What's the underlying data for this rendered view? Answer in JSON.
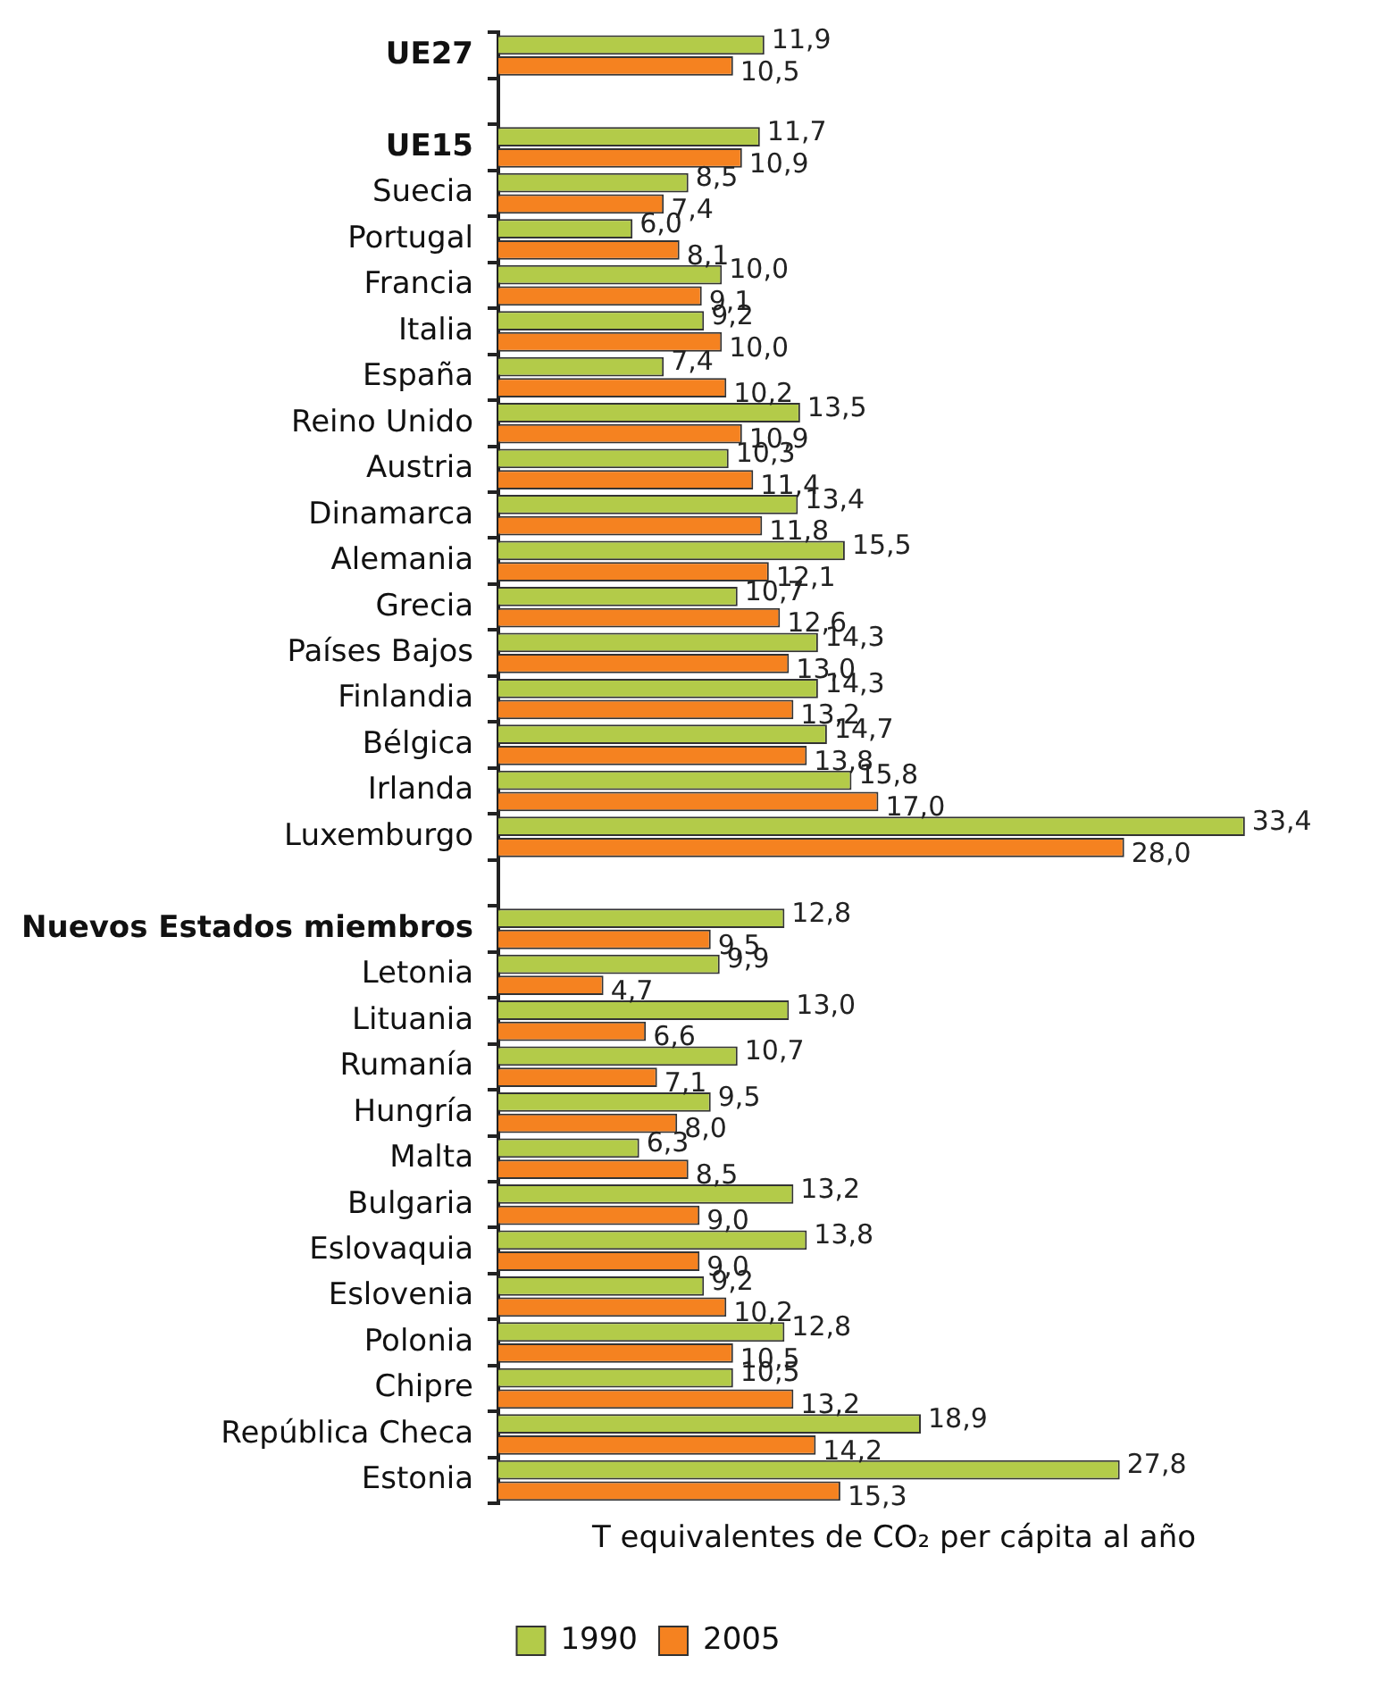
{
  "chart_data": {
    "type": "bar",
    "orientation": "horizontal",
    "xlabel": "T equivalentes de CO₂ per cápita al año",
    "categories": [
      "UE27",
      null,
      "UE15",
      "Suecia",
      "Portugal",
      "Francia",
      "Italia",
      "España",
      "Reino Unido",
      "Austria",
      "Dinamarca",
      "Alemania",
      "Grecia",
      "Países Bajos",
      "Finlandia",
      "Bélgica",
      "Irlanda",
      "Luxemburgo",
      null,
      "Nuevos Estados miembros",
      "Letonia",
      "Lituania",
      "Rumanía",
      "Hungría",
      "Malta",
      "Bulgaria",
      "Eslovaquia",
      "Eslovenia",
      "Polonia",
      "Chipre",
      "República Checa",
      "Estonia"
    ],
    "series": [
      {
        "name": "1990",
        "color": "#b3cb49",
        "values": [
          11.9,
          null,
          11.7,
          8.5,
          6.0,
          10.0,
          9.2,
          7.4,
          13.5,
          10.3,
          13.4,
          15.5,
          10.7,
          14.3,
          14.3,
          14.7,
          15.8,
          33.4,
          null,
          12.8,
          9.9,
          13.0,
          10.7,
          9.5,
          6.3,
          13.2,
          13.8,
          9.2,
          12.8,
          10.5,
          18.9,
          27.8
        ],
        "value_labels": [
          "11,9",
          null,
          "11,7",
          "8,5",
          "6,0",
          "10,0",
          "9,2",
          "7,4",
          "13,5",
          "10,3",
          "13,4",
          "15,5",
          "10,7",
          "14,3",
          "14,3",
          "14,7",
          "15,8",
          "33,4",
          null,
          "12,8",
          "9,9",
          "13,0",
          "10,7",
          "9,5",
          "6,3",
          "13,2",
          "13,8",
          "9,2",
          "12,8",
          "10,5",
          "18,9",
          "27,8"
        ]
      },
      {
        "name": "2005",
        "color": "#f58220",
        "values": [
          10.5,
          null,
          10.9,
          7.4,
          8.1,
          9.1,
          10.0,
          10.2,
          10.9,
          11.4,
          11.8,
          12.1,
          12.6,
          13.0,
          13.2,
          13.8,
          17.0,
          28.0,
          null,
          9.5,
          4.7,
          6.6,
          7.1,
          8.0,
          8.5,
          9.0,
          9.0,
          10.2,
          10.5,
          13.2,
          14.2,
          15.3
        ],
        "value_labels": [
          "10,5",
          null,
          "10,9",
          "7,4",
          "8,1",
          "9,1",
          "10,0",
          "10,2",
          "10,9",
          "11,4",
          "11,8",
          "12,1",
          "12,6",
          "13,0",
          "13,2",
          "13,8",
          "17,0",
          "28,0",
          null,
          "9,5",
          "4,7",
          "6,6",
          "7,1",
          "8,0",
          "8,5",
          "9,0",
          "9,0",
          "10,2",
          "10,5",
          "13,2",
          "14,2",
          "15,3"
        ]
      }
    ],
    "legend": "bottom",
    "grid": false
  }
}
